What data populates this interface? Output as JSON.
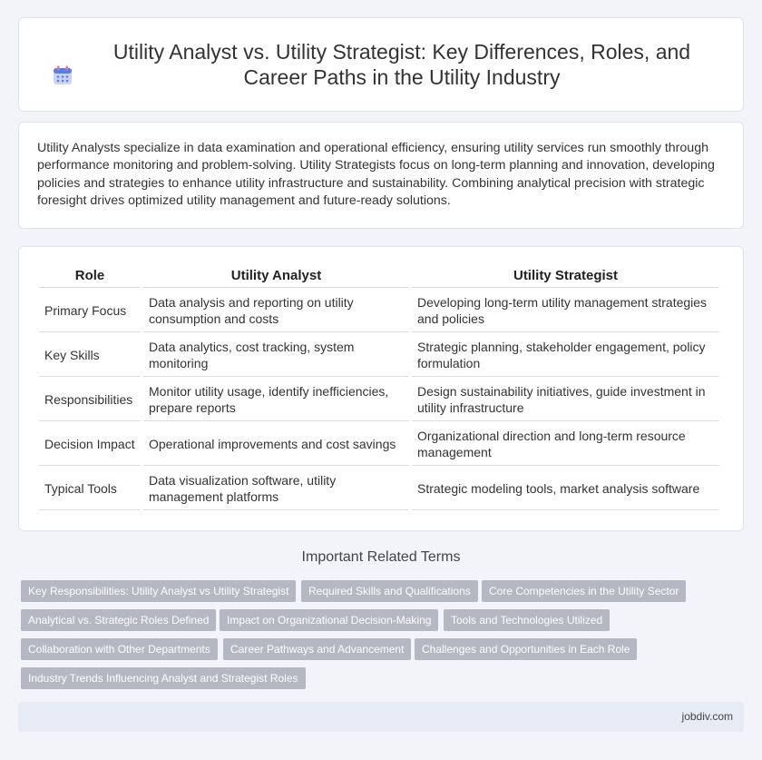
{
  "header": {
    "icon": "calendar-icon",
    "title": "Utility Analyst vs. Utility Strategist: Key Differences, Roles, and Career Paths in the Utility Industry"
  },
  "intro": {
    "text": "Utility Analysts specialize in data examination and operational efficiency, ensuring utility services run smoothly through performance monitoring and problem-solving. Utility Strategists focus on long-term planning and innovation, developing policies and strategies to enhance utility infrastructure and sustainability. Combining analytical precision with strategic foresight drives optimized utility management and future-ready solutions."
  },
  "table": {
    "headers": [
      "Role",
      "Utility Analyst",
      "Utility Strategist"
    ],
    "rows": [
      [
        "Primary Focus",
        "Data analysis and reporting on utility consumption and costs",
        "Developing long-term utility management strategies and policies"
      ],
      [
        "Key Skills",
        "Data analytics, cost tracking, system monitoring",
        "Strategic planning, stakeholder engagement, policy formulation"
      ],
      [
        "Responsibilities",
        "Monitor utility usage, identify inefficiencies, prepare reports",
        "Design sustainability initiatives, guide investment in utility infrastructure"
      ],
      [
        "Decision Impact",
        "Operational improvements and cost savings",
        "Organizational direction and long-term resource management"
      ],
      [
        "Typical Tools",
        "Data visualization software, utility management platforms",
        "Strategic modeling tools, market analysis software"
      ]
    ]
  },
  "related": {
    "title": "Important Related Terms",
    "tags": [
      "Key Responsibilities: Utility Analyst vs Utility Strategist",
      "Required Skills and Qualifications",
      "Core Competencies in the Utility Sector",
      "Analytical vs. Strategic Roles Defined",
      "Impact on Organizational Decision-Making",
      "Tools and Technologies Utilized",
      "Collaboration with Other Departments",
      "Career Pathways and Advancement",
      "Challenges and Opportunities in Each Role",
      "Industry Trends Influencing Analyst and Strategist Roles"
    ]
  },
  "footer": {
    "site": "jobdiv.com"
  }
}
